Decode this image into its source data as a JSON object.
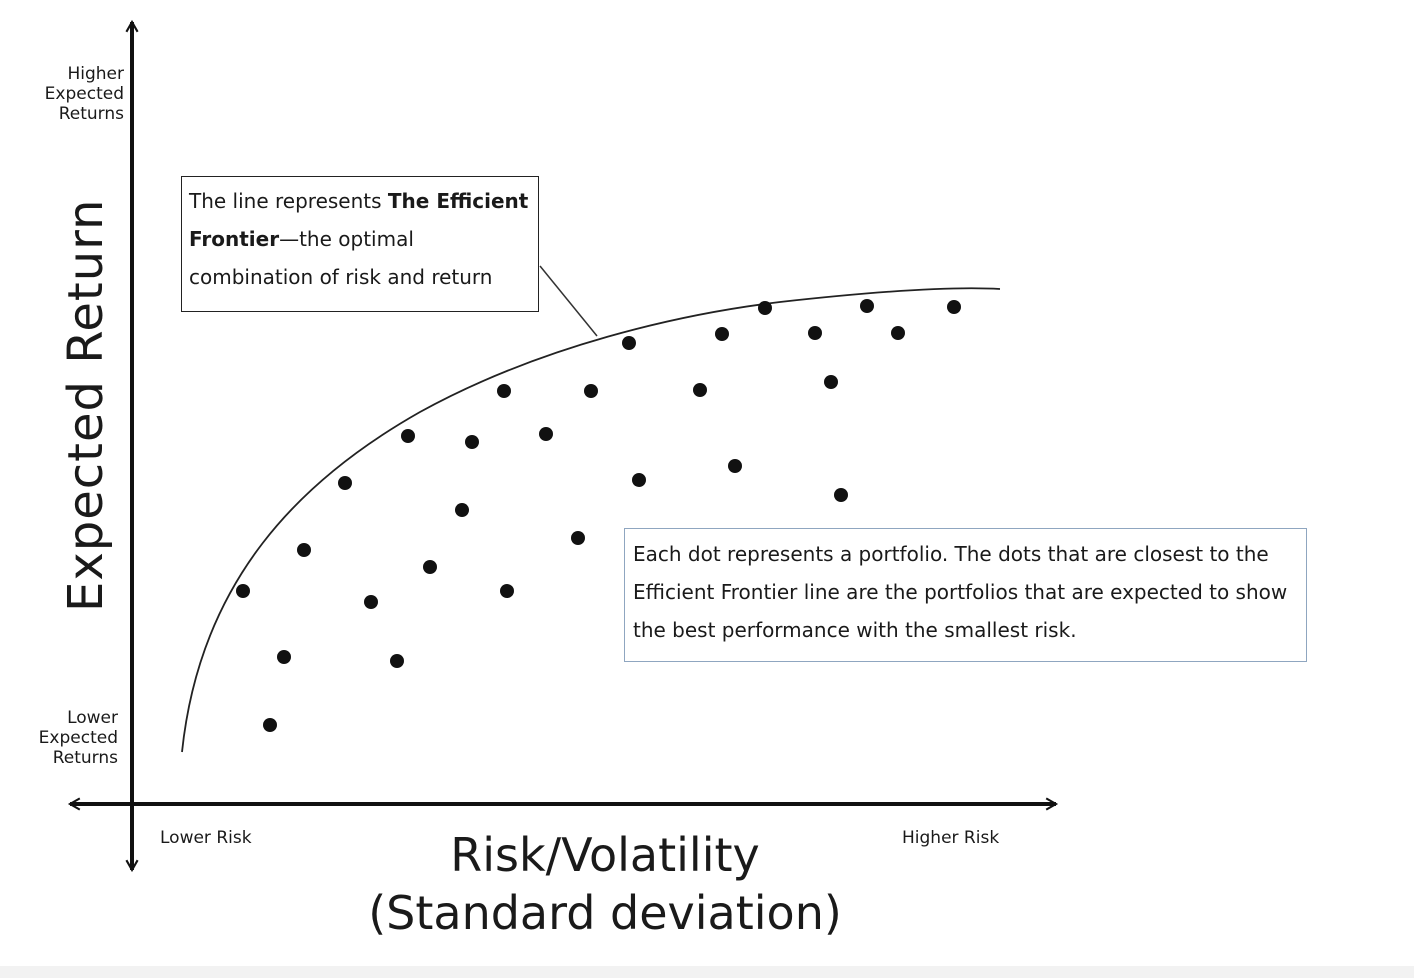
{
  "y_axis": {
    "title": "Expected Return",
    "top_label": [
      "Higher",
      "Expected",
      "Returns"
    ],
    "bottom_label": [
      "Lower",
      "Expected",
      "Returns"
    ]
  },
  "x_axis": {
    "title_line1": "Risk/Volatility",
    "title_line2": "(Standard deviation)",
    "left_label": "Lower Risk",
    "right_label": "Higher Risk"
  },
  "callout_frontier": {
    "text_pre": "The line represents ",
    "text_bold": "The Efficient Frontier",
    "text_post": "—the optimal combination of risk and return"
  },
  "callout_dots": {
    "text": "Each dot represents a portfolio. The dots that are closest to the Efficient Frontier line are the portfolios that are expected to show the best performance with the smallest risk."
  },
  "colors": {
    "ink": "#111111",
    "callout_border_dark": "#222222",
    "callout_border_blue": "#8fa6c0"
  }
}
